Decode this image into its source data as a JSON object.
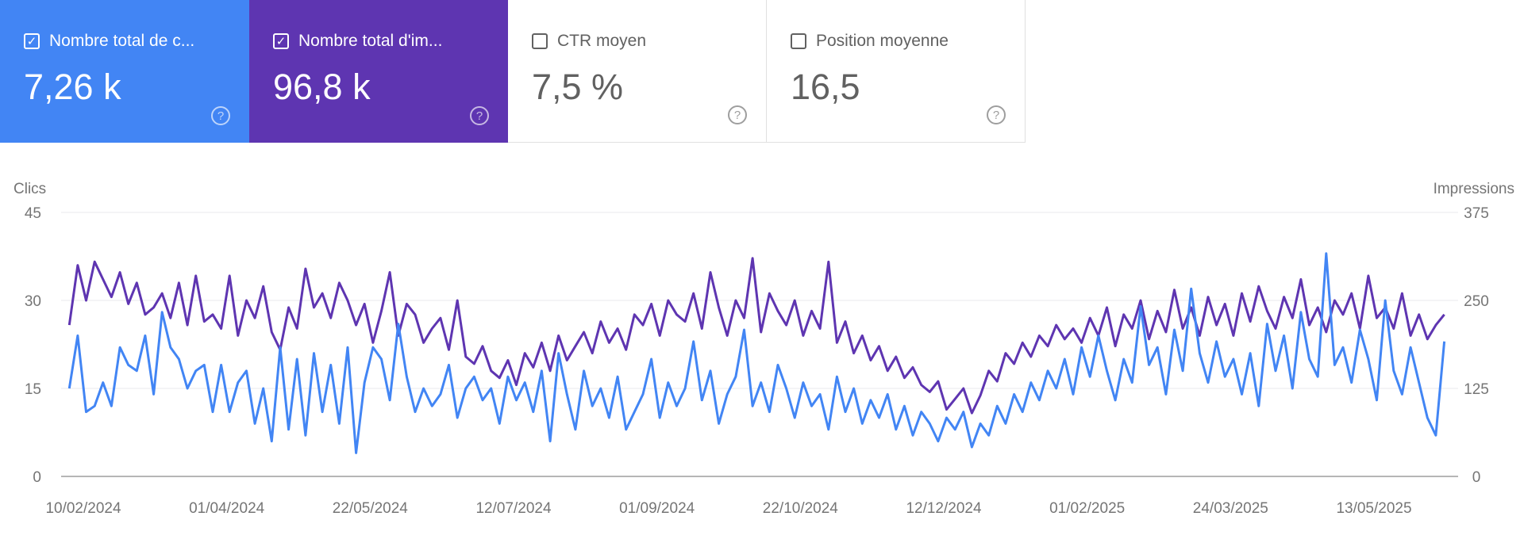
{
  "cards": [
    {
      "label": "Nombre total de c...",
      "value": "7,26 k",
      "checked": true,
      "color": "#4285f4"
    },
    {
      "label": "Nombre total d'im...",
      "value": "96,8 k",
      "checked": true,
      "color": "#5e35b1"
    },
    {
      "label": "CTR moyen",
      "value": "7,5 %",
      "checked": false
    },
    {
      "label": "Position moyenne",
      "value": "16,5",
      "checked": false
    }
  ],
  "icons": {
    "checkbox_checked": "check-icon",
    "help": "help-circle-icon"
  },
  "chart_data": {
    "type": "line",
    "left_axis_label": "Clics",
    "right_axis_label": "Impressions",
    "left_ticks": [
      "0",
      "15",
      "30",
      "45"
    ],
    "right_ticks": [
      "0",
      "125",
      "250",
      "375"
    ],
    "left_ylim": [
      0,
      45
    ],
    "right_ylim": [
      0,
      375
    ],
    "x_tick_labels": [
      "10/02/2024",
      "01/04/2024",
      "22/05/2024",
      "12/07/2024",
      "01/09/2024",
      "22/10/2024",
      "12/12/2024",
      "01/02/2025",
      "24/03/2025",
      "13/05/2025"
    ],
    "grid": true,
    "series": [
      {
        "axis": "left",
        "color": "#4285f4",
        "values": [
          15,
          24,
          11,
          12,
          16,
          12,
          22,
          19,
          18,
          24,
          14,
          28,
          22,
          20,
          15,
          18,
          19,
          11,
          19,
          11,
          16,
          18,
          9,
          15,
          6,
          22,
          8,
          20,
          7,
          21,
          11,
          19,
          9,
          22,
          4,
          16,
          22,
          20,
          13,
          26,
          17,
          11,
          15,
          12,
          14,
          19,
          10,
          15,
          17,
          13,
          15,
          9,
          17,
          13,
          16,
          11,
          18,
          6,
          21,
          14,
          8,
          18,
          12,
          15,
          10,
          17,
          8,
          11,
          14,
          20,
          10,
          16,
          12,
          15,
          23,
          13,
          18,
          9,
          14,
          17,
          25,
          12,
          16,
          11,
          19,
          15,
          10,
          16,
          12,
          14,
          8,
          17,
          11,
          15,
          9,
          13,
          10,
          14,
          8,
          12,
          7,
          11,
          9,
          6,
          10,
          8,
          11,
          5,
          9,
          7,
          12,
          9,
          14,
          11,
          16,
          13,
          18,
          15,
          20,
          14,
          22,
          17,
          24,
          18,
          13,
          20,
          16,
          29,
          19,
          22,
          14,
          25,
          18,
          32,
          21,
          16,
          23,
          17,
          20,
          14,
          21,
          12,
          26,
          18,
          24,
          15,
          28,
          20,
          17,
          38,
          19,
          22,
          16,
          25,
          20,
          13,
          30,
          18,
          14,
          22,
          16,
          10,
          7,
          23
        ]
      },
      {
        "axis": "right",
        "color": "#5e35b1",
        "values": [
          215,
          300,
          250,
          305,
          280,
          255,
          290,
          245,
          275,
          230,
          240,
          260,
          225,
          275,
          215,
          285,
          220,
          230,
          210,
          285,
          200,
          250,
          225,
          270,
          205,
          180,
          240,
          210,
          295,
          240,
          260,
          225,
          275,
          250,
          215,
          245,
          190,
          235,
          290,
          200,
          245,
          230,
          190,
          210,
          225,
          180,
          250,
          170,
          160,
          185,
          150,
          140,
          165,
          130,
          175,
          155,
          190,
          150,
          200,
          165,
          185,
          205,
          175,
          220,
          190,
          210,
          180,
          230,
          215,
          245,
          200,
          250,
          230,
          220,
          260,
          210,
          290,
          240,
          200,
          250,
          225,
          310,
          205,
          260,
          235,
          215,
          250,
          200,
          235,
          210,
          305,
          190,
          220,
          175,
          200,
          165,
          185,
          150,
          170,
          140,
          155,
          130,
          120,
          135,
          95,
          110,
          125,
          90,
          115,
          150,
          135,
          175,
          160,
          190,
          170,
          200,
          185,
          215,
          195,
          210,
          190,
          225,
          200,
          240,
          185,
          230,
          210,
          250,
          195,
          235,
          205,
          265,
          210,
          240,
          200,
          255,
          215,
          245,
          200,
          260,
          220,
          270,
          235,
          210,
          255,
          225,
          280,
          215,
          240,
          205,
          250,
          230,
          260,
          210,
          285,
          225,
          240,
          210,
          260,
          200,
          230,
          195,
          215,
          230
        ]
      }
    ]
  }
}
